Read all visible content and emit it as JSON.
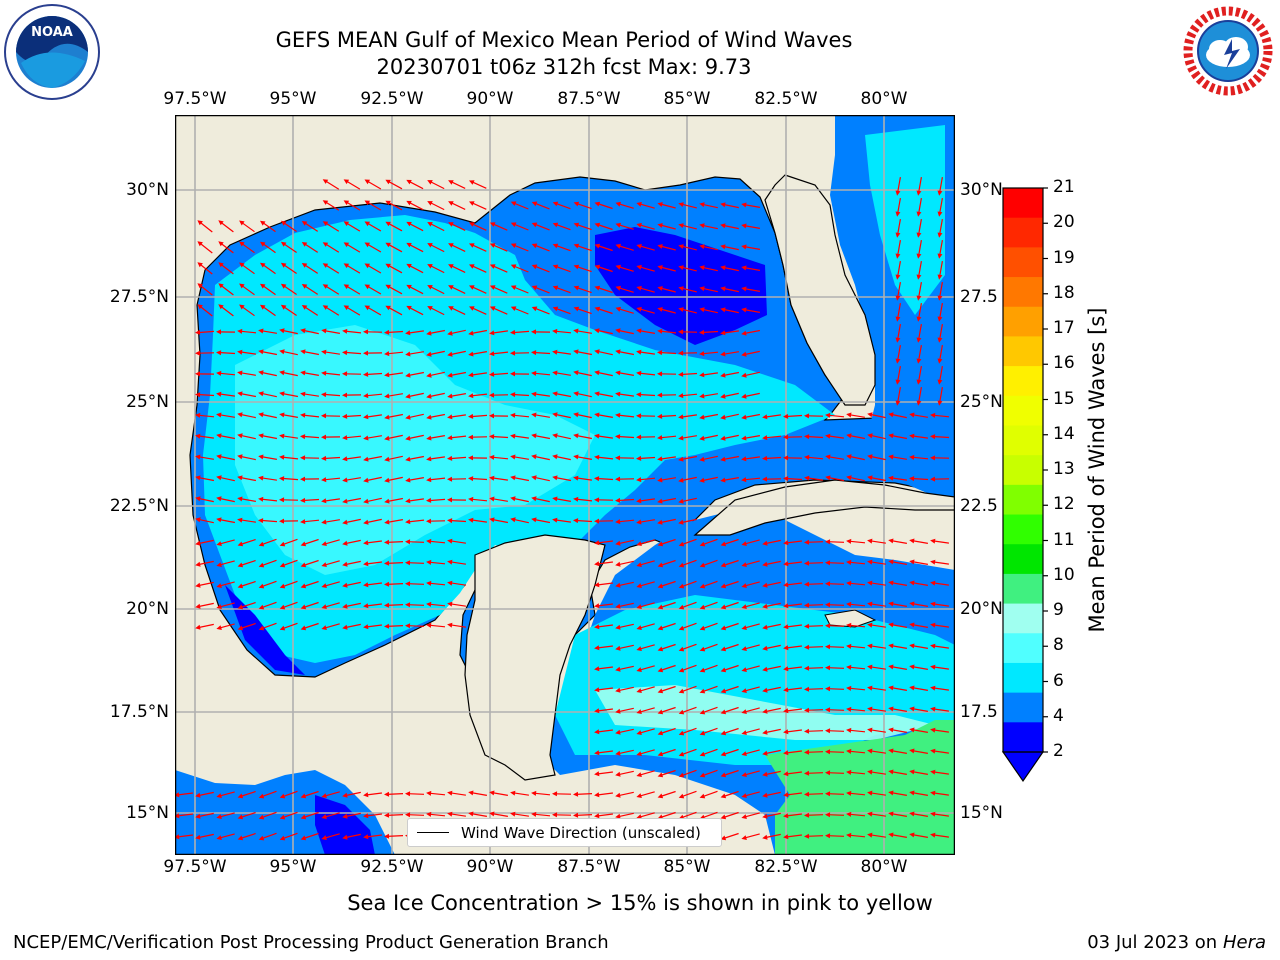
{
  "title": {
    "line1": "GEFS MEAN Gulf of Mexico Mean Period of Wind Waves",
    "line2": "20230701 t06z 312h fcst   Max: 9.73"
  },
  "logos": {
    "left": {
      "icon": "noaa-logo",
      "text": "NOAA"
    },
    "right": {
      "icon": "national-weather-service-logo",
      "text": "NATIONAL WEATHER SERVICE"
    }
  },
  "map": {
    "lon_labels": [
      "97.5°W",
      "95°W",
      "92.5°W",
      "90°W",
      "87.5°W",
      "85°W",
      "82.5°W",
      "80°W"
    ],
    "lat_labels_left": [
      "30°N",
      "27.5°N",
      "25°N",
      "22.5°N",
      "20°N",
      "17.5°N",
      "15°N"
    ],
    "lat_labels_right": [
      "30°N",
      "27.5",
      "25°N",
      "22.5",
      "20°N",
      "17.5",
      "15°N"
    ],
    "legend_label": "Wind Wave Direction (unscaled)",
    "colors": {
      "land": "#efecdc",
      "coast": "#000000",
      "grid": "#b0b0b0",
      "arrow": "#ff0000"
    }
  },
  "colorbar": {
    "label": "Mean Period of Wind Waves [s]",
    "ticks": [
      "21",
      "20",
      "19",
      "18",
      "17",
      "16",
      "15",
      "14",
      "13",
      "12",
      "11",
      "10",
      "9",
      "8",
      "6",
      "4",
      "2"
    ],
    "colors_top_to_bottom": [
      "#ff0000",
      "#ff2800",
      "#ff5000",
      "#ff7800",
      "#ffa000",
      "#ffc800",
      "#fff000",
      "#f0ff00",
      "#e0ff00",
      "#c8ff00",
      "#80ff00",
      "#30ff00",
      "#00e600",
      "#40f080",
      "#a0fff0",
      "#50ffff",
      "#00e8ff",
      "#0080ff",
      "#0000ff"
    ],
    "extend_color": "#0000ff"
  },
  "notes": {
    "sea_ice": "Sea Ice Concentration > 15% is shown in pink to yellow"
  },
  "footer": {
    "left": "NCEP/EMC/Verification Post Processing Product Generation Branch",
    "date": "03 Jul 2023 on ",
    "host": "Hera"
  }
}
